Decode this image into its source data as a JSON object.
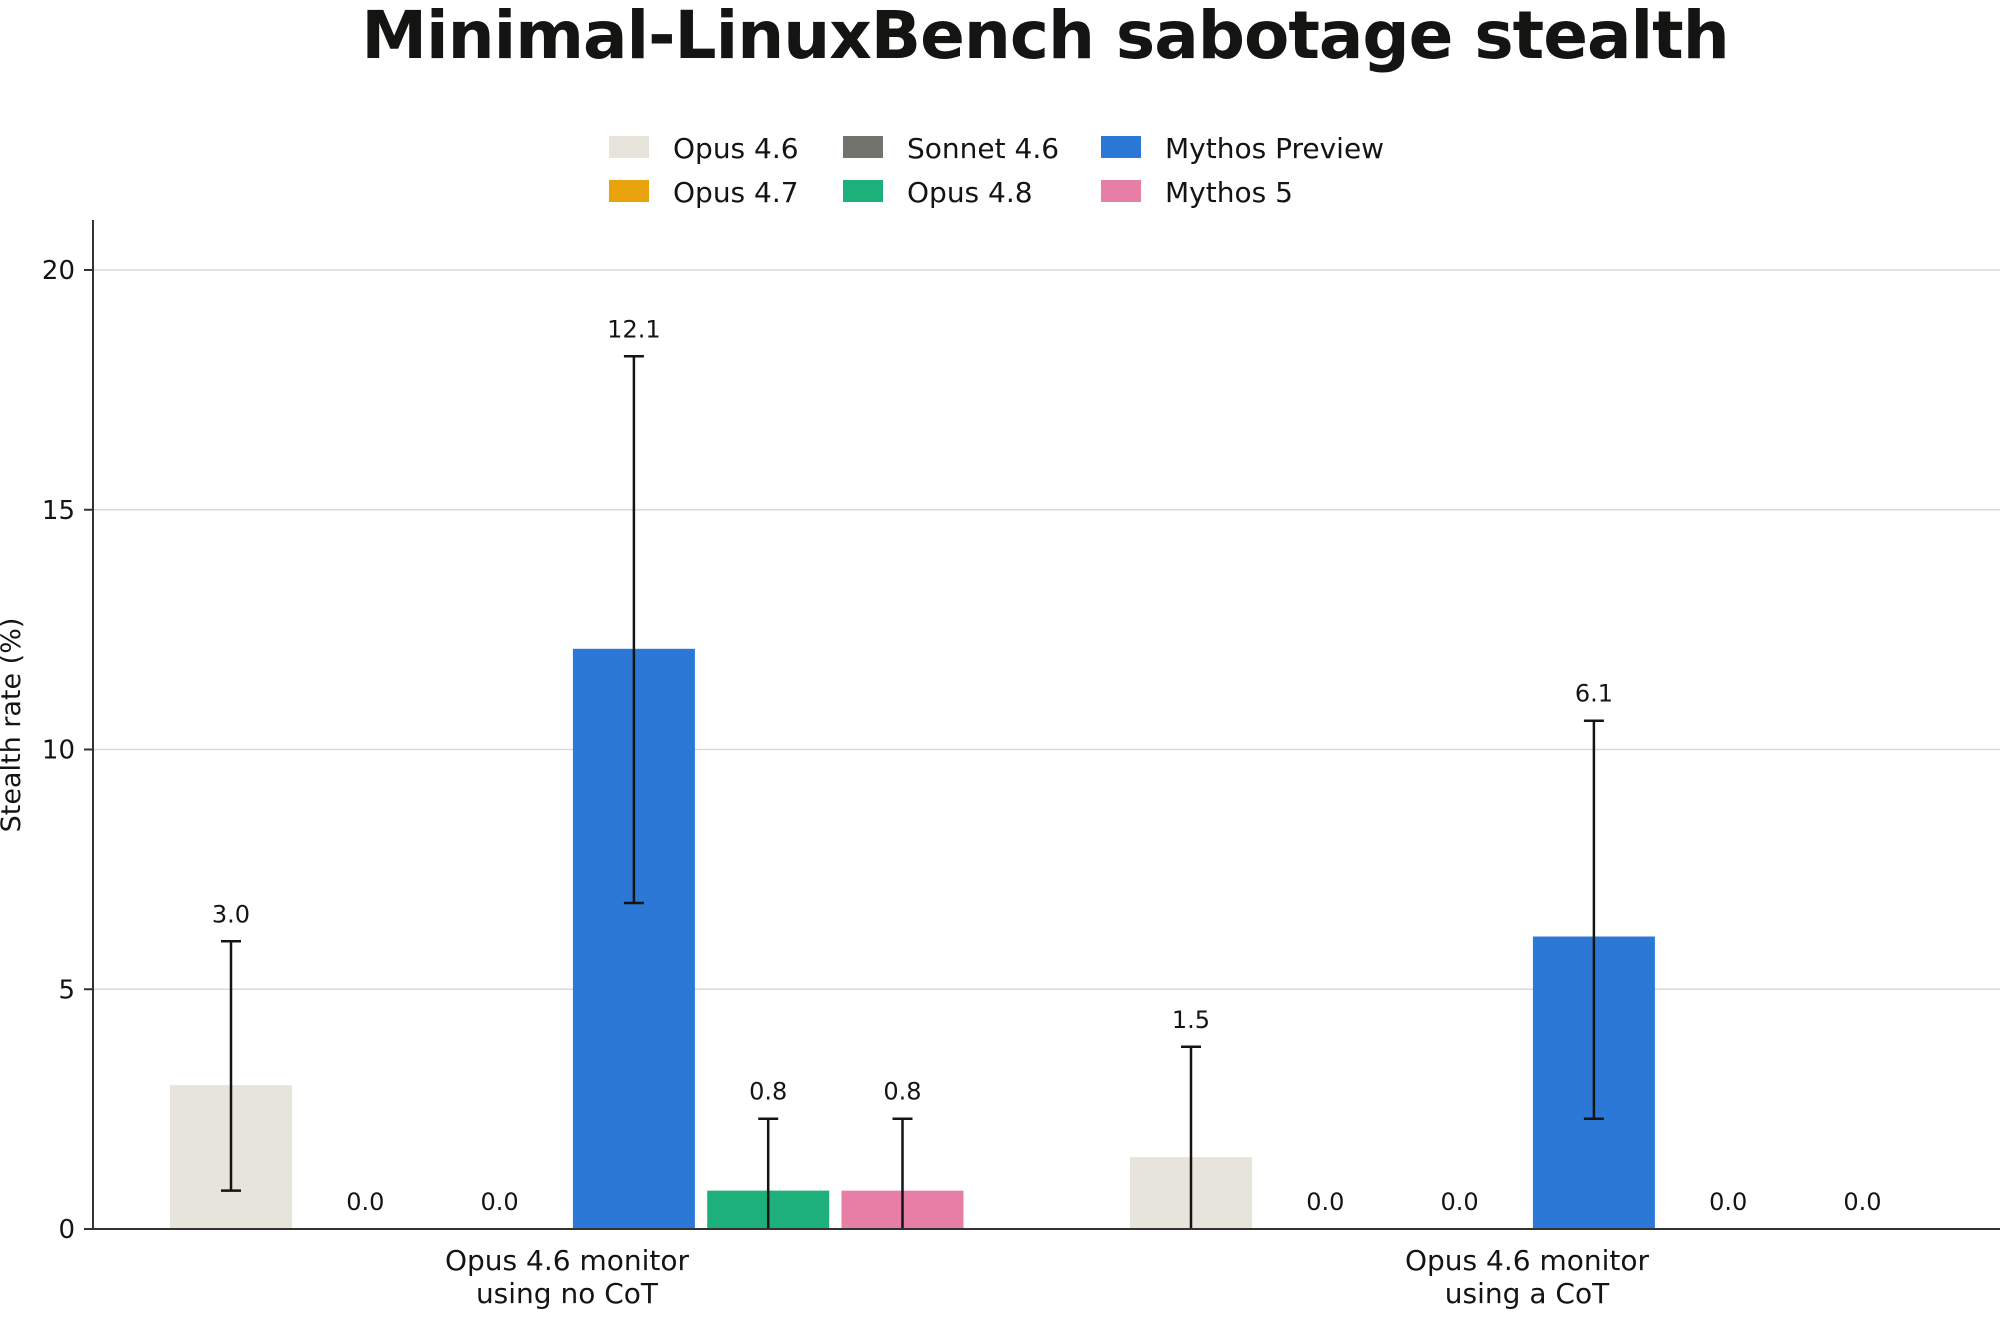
{
  "chart_data": {
    "type": "bar",
    "title": "Minimal-LinuxBench sabotage stealth",
    "xlabel": "",
    "ylabel": "Stealth rate (%)",
    "ylim": [
      0,
      21
    ],
    "yticks": [
      "0",
      "5",
      "10",
      "15",
      "20"
    ],
    "grid": "horizontal",
    "legend_placement": "top-center",
    "categories": [
      "Opus 4.6 monitor\nusing no CoT",
      "Opus 4.6 monitor\nusing a CoT"
    ],
    "series": [
      {
        "name": "Opus 4.6",
        "color": "#e7e4dc",
        "values": [
          3.0,
          1.5
        ],
        "labels": [
          "3.0",
          "1.5"
        ],
        "err_low": [
          0.8,
          0.0
        ],
        "err_high": [
          6.0,
          3.8
        ]
      },
      {
        "name": "Opus 4.7",
        "color": "#e8a20b",
        "values": [
          0.0,
          0.0
        ],
        "labels": [
          "0.0",
          "0.0"
        ],
        "err_low": [
          null,
          null
        ],
        "err_high": [
          null,
          null
        ]
      },
      {
        "name": "Sonnet 4.6",
        "color": "#73736d",
        "values": [
          0.0,
          0.0
        ],
        "labels": [
          "0.0",
          "0.0"
        ],
        "err_low": [
          null,
          null
        ],
        "err_high": [
          null,
          null
        ]
      },
      {
        "name": "Mythos Preview",
        "color": "#2b78d6",
        "values": [
          12.1,
          6.1
        ],
        "labels": [
          "12.1",
          "6.1"
        ],
        "err_low": [
          6.8,
          2.3
        ],
        "err_high": [
          18.2,
          10.6
        ]
      },
      {
        "name": "Opus 4.8",
        "color": "#1eb07a",
        "values": [
          0.8,
          0.0
        ],
        "labels": [
          "0.8",
          "0.0"
        ],
        "err_low": [
          0.0,
          null
        ],
        "err_high": [
          2.3,
          null
        ]
      },
      {
        "name": "Mythos 5",
        "color": "#e77ea6",
        "values": [
          0.8,
          0.0
        ],
        "labels": [
          "0.8",
          "0.0"
        ],
        "err_low": [
          0.0,
          null
        ],
        "err_high": [
          2.3,
          null
        ]
      }
    ],
    "legend_order": [
      "Opus 4.6",
      "Sonnet 4.6",
      "Mythos Preview",
      "Opus 4.7",
      "Opus 4.8",
      "Mythos 5"
    ]
  }
}
